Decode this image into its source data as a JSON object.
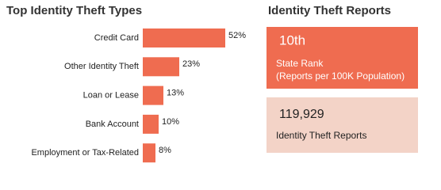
{
  "chart_data": {
    "type": "bar",
    "orientation": "horizontal",
    "title": "Top Identity Theft Types",
    "categories": [
      "Credit Card",
      "Other Identity Theft",
      "Loan or Lease",
      "Bank Account",
      "Employment or Tax-Related"
    ],
    "values": [
      52,
      23,
      13,
      10,
      8
    ],
    "value_labels": [
      "52%",
      "23%",
      "13%",
      "10%",
      "8%"
    ],
    "color": "#ef6c50"
  },
  "reports": {
    "title": "Identity Theft Reports",
    "rank": {
      "value": "10th",
      "label": "State Rank",
      "sublabel": "(Reports per 100K Population)"
    },
    "total": {
      "value": "119,929",
      "label": "Identity Theft Reports"
    }
  }
}
